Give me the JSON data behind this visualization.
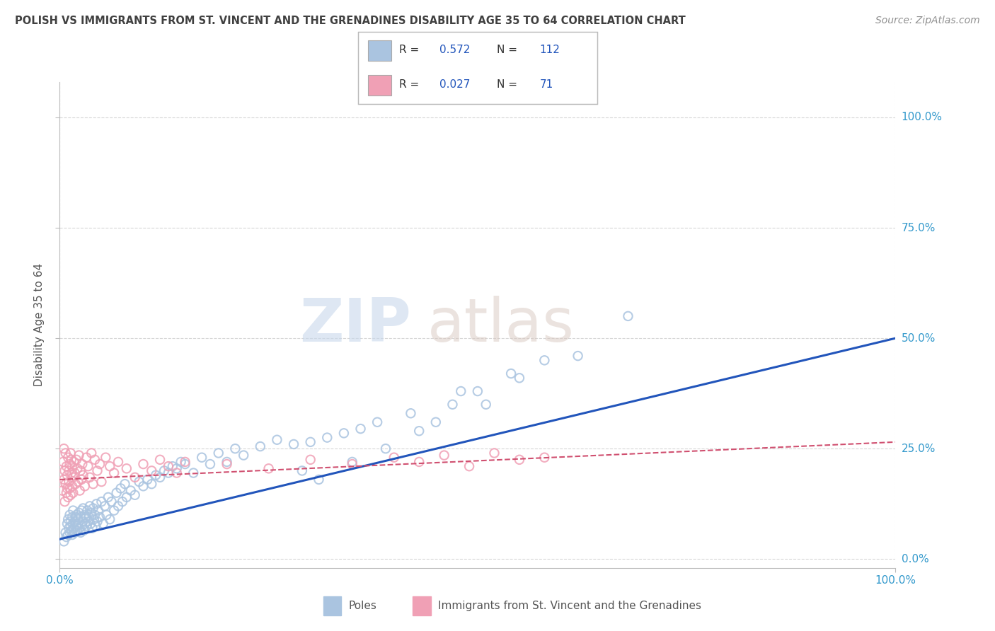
{
  "title": "POLISH VS IMMIGRANTS FROM ST. VINCENT AND THE GRENADINES DISABILITY AGE 35 TO 64 CORRELATION CHART",
  "source": "Source: ZipAtlas.com",
  "ylabel": "Disability Age 35 to 64",
  "xlim": [
    0.0,
    1.0
  ],
  "ylim": [
    -0.02,
    1.08
  ],
  "blue_R": 0.572,
  "blue_N": 112,
  "pink_R": 0.027,
  "pink_N": 71,
  "blue_color": "#aac4e0",
  "pink_color": "#f0a0b5",
  "blue_line_color": "#2255bb",
  "pink_line_color": "#d05070",
  "watermark_zip": "ZIP",
  "watermark_atlas": "atlas",
  "background_color": "#ffffff",
  "grid_color": "#cccccc",
  "legend_color": "#2255bb",
  "title_color": "#404040",
  "source_color": "#909090",
  "axis_label_color": "#3399cc",
  "blue_line_x0": 0.0,
  "blue_line_y0": 0.045,
  "blue_line_x1": 1.0,
  "blue_line_y1": 0.5,
  "pink_line_x0": 0.0,
  "pink_line_y0": 0.18,
  "pink_line_x1": 1.0,
  "pink_line_y1": 0.265,
  "blue_scatter_x": [
    0.005,
    0.007,
    0.008,
    0.009,
    0.01,
    0.01,
    0.011,
    0.012,
    0.012,
    0.013,
    0.013,
    0.014,
    0.015,
    0.015,
    0.016,
    0.016,
    0.017,
    0.018,
    0.018,
    0.019,
    0.02,
    0.02,
    0.021,
    0.022,
    0.022,
    0.023,
    0.024,
    0.025,
    0.025,
    0.026,
    0.027,
    0.028,
    0.028,
    0.029,
    0.03,
    0.03,
    0.031,
    0.032,
    0.033,
    0.034,
    0.035,
    0.036,
    0.037,
    0.038,
    0.039,
    0.04,
    0.041,
    0.042,
    0.043,
    0.044,
    0.045,
    0.046,
    0.048,
    0.05,
    0.052,
    0.054,
    0.056,
    0.058,
    0.06,
    0.062,
    0.065,
    0.068,
    0.07,
    0.073,
    0.075,
    0.078,
    0.08,
    0.085,
    0.09,
    0.095,
    0.1,
    0.105,
    0.11,
    0.115,
    0.12,
    0.125,
    0.13,
    0.135,
    0.14,
    0.145,
    0.15,
    0.16,
    0.17,
    0.18,
    0.19,
    0.2,
    0.21,
    0.22,
    0.24,
    0.26,
    0.28,
    0.3,
    0.32,
    0.34,
    0.36,
    0.38,
    0.43,
    0.47,
    0.5,
    0.54,
    0.29,
    0.31,
    0.35,
    0.39,
    0.42,
    0.45,
    0.48,
    0.51,
    0.55,
    0.58,
    0.62,
    0.68
  ],
  "blue_scatter_y": [
    0.04,
    0.06,
    0.05,
    0.08,
    0.055,
    0.09,
    0.07,
    0.06,
    0.1,
    0.075,
    0.085,
    0.065,
    0.095,
    0.055,
    0.08,
    0.11,
    0.07,
    0.085,
    0.06,
    0.095,
    0.075,
    0.1,
    0.065,
    0.09,
    0.08,
    0.105,
    0.07,
    0.095,
    0.06,
    0.11,
    0.075,
    0.085,
    0.115,
    0.065,
    0.1,
    0.08,
    0.095,
    0.075,
    0.11,
    0.085,
    0.095,
    0.12,
    0.08,
    0.105,
    0.07,
    0.115,
    0.09,
    0.1,
    0.075,
    0.125,
    0.085,
    0.11,
    0.095,
    0.13,
    0.08,
    0.12,
    0.1,
    0.14,
    0.09,
    0.13,
    0.11,
    0.15,
    0.12,
    0.16,
    0.13,
    0.17,
    0.14,
    0.155,
    0.145,
    0.175,
    0.165,
    0.18,
    0.17,
    0.19,
    0.185,
    0.2,
    0.195,
    0.21,
    0.205,
    0.22,
    0.215,
    0.195,
    0.23,
    0.215,
    0.24,
    0.22,
    0.25,
    0.235,
    0.255,
    0.27,
    0.26,
    0.265,
    0.275,
    0.285,
    0.295,
    0.31,
    0.29,
    0.35,
    0.38,
    0.42,
    0.2,
    0.18,
    0.22,
    0.25,
    0.33,
    0.31,
    0.38,
    0.35,
    0.41,
    0.45,
    0.46,
    0.55
  ],
  "pink_scatter_x": [
    0.003,
    0.004,
    0.005,
    0.005,
    0.006,
    0.006,
    0.007,
    0.007,
    0.008,
    0.008,
    0.009,
    0.009,
    0.01,
    0.01,
    0.011,
    0.011,
    0.012,
    0.012,
    0.013,
    0.013,
    0.014,
    0.014,
    0.015,
    0.015,
    0.016,
    0.016,
    0.017,
    0.018,
    0.019,
    0.02,
    0.021,
    0.022,
    0.023,
    0.024,
    0.025,
    0.026,
    0.027,
    0.028,
    0.03,
    0.032,
    0.034,
    0.036,
    0.038,
    0.04,
    0.042,
    0.045,
    0.048,
    0.05,
    0.055,
    0.06,
    0.065,
    0.07,
    0.08,
    0.09,
    0.1,
    0.11,
    0.12,
    0.13,
    0.14,
    0.15,
    0.2,
    0.25,
    0.3,
    0.35,
    0.4,
    0.43,
    0.46,
    0.49,
    0.52,
    0.55,
    0.58
  ],
  "pink_scatter_y": [
    0.155,
    0.22,
    0.18,
    0.25,
    0.13,
    0.2,
    0.17,
    0.24,
    0.15,
    0.21,
    0.19,
    0.16,
    0.23,
    0.14,
    0.2,
    0.175,
    0.215,
    0.16,
    0.24,
    0.145,
    0.195,
    0.225,
    0.165,
    0.21,
    0.185,
    0.15,
    0.22,
    0.195,
    0.17,
    0.225,
    0.205,
    0.175,
    0.235,
    0.155,
    0.2,
    0.18,
    0.215,
    0.19,
    0.165,
    0.23,
    0.21,
    0.185,
    0.24,
    0.17,
    0.225,
    0.2,
    0.215,
    0.175,
    0.23,
    0.21,
    0.195,
    0.22,
    0.205,
    0.185,
    0.215,
    0.2,
    0.225,
    0.21,
    0.195,
    0.22,
    0.215,
    0.205,
    0.225,
    0.215,
    0.23,
    0.22,
    0.235,
    0.21,
    0.24,
    0.225,
    0.23
  ]
}
